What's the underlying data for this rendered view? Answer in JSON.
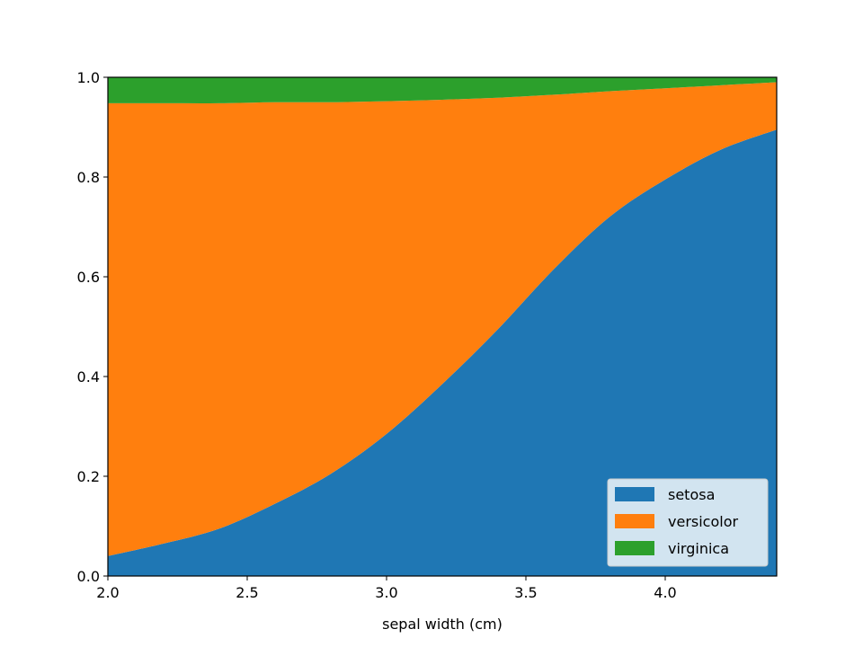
{
  "chart_data": {
    "type": "area",
    "title": "",
    "xlabel": "sepal width (cm)",
    "ylabel": "",
    "xlim": [
      2.0,
      4.4
    ],
    "ylim": [
      0.0,
      1.0
    ],
    "xticks": [
      "2.0",
      "2.5",
      "3.0",
      "3.5",
      "4.0"
    ],
    "yticks": [
      "0.0",
      "0.2",
      "0.4",
      "0.6",
      "0.8",
      "1.0"
    ],
    "stacked": true,
    "grid": false,
    "legend_position": "lower-right",
    "x": [
      2.0,
      2.2,
      2.4,
      2.6,
      2.8,
      3.0,
      3.2,
      3.4,
      3.6,
      3.8,
      4.0,
      4.2,
      4.4
    ],
    "series": [
      {
        "name": "setosa",
        "color": "#1f77b4",
        "values": [
          0.04,
          0.065,
          0.095,
          0.145,
          0.205,
          0.285,
          0.385,
          0.495,
          0.615,
          0.72,
          0.795,
          0.855,
          0.895
        ]
      },
      {
        "name": "versicolor",
        "color": "#ff7f0e",
        "values": [
          0.908,
          0.883,
          0.853,
          0.805,
          0.745,
          0.667,
          0.57,
          0.464,
          0.35,
          0.252,
          0.183,
          0.129,
          0.095
        ]
      },
      {
        "name": "virginica",
        "color": "#2ca02c",
        "values": [
          0.052,
          0.052,
          0.052,
          0.05,
          0.05,
          0.048,
          0.045,
          0.041,
          0.035,
          0.028,
          0.022,
          0.016,
          0.01
        ]
      }
    ]
  }
}
